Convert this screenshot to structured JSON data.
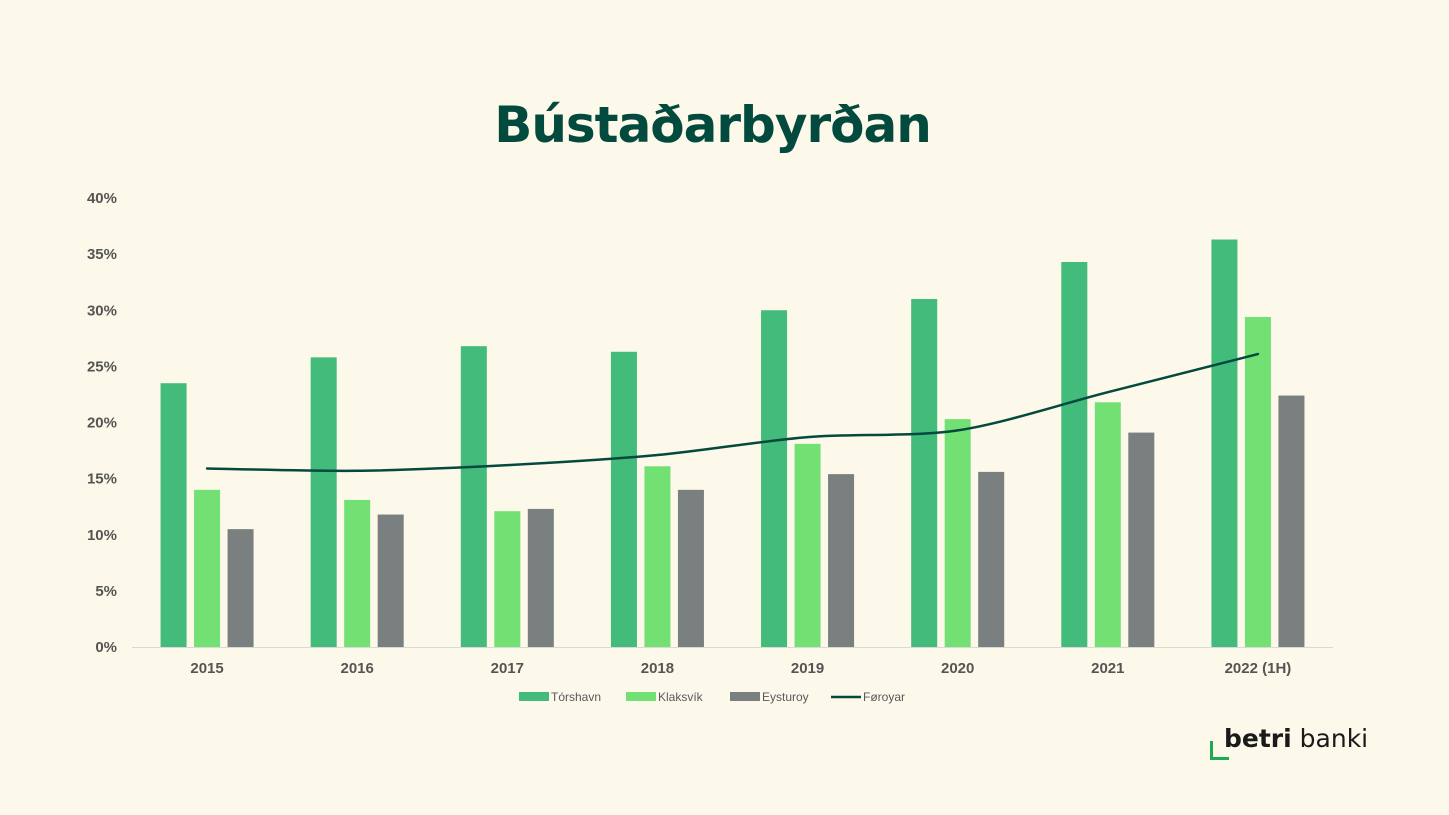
{
  "chart_data": {
    "type": "bar",
    "title": "Bústaðarbyrðan",
    "categories": [
      "2015",
      "2016",
      "2017",
      "2018",
      "2019",
      "2020",
      "2021",
      "2022 (1H)"
    ],
    "series": [
      {
        "name": "Tórshavn",
        "type": "bar",
        "color": "#43BB7B",
        "values": [
          23.5,
          25.8,
          26.8,
          26.3,
          30.0,
          31.0,
          34.3,
          36.3
        ]
      },
      {
        "name": "Klaksvík",
        "type": "bar",
        "color": "#73E074",
        "values": [
          14.0,
          13.1,
          12.1,
          16.1,
          18.1,
          20.3,
          21.8,
          29.4
        ]
      },
      {
        "name": "Eysturoy",
        "type": "bar",
        "color": "#7A7F7F",
        "values": [
          10.5,
          11.8,
          12.3,
          14.0,
          15.4,
          15.6,
          19.1,
          22.4
        ]
      },
      {
        "name": "Føroyar",
        "type": "line",
        "color": "#034A3E",
        "values": [
          15.9,
          15.7,
          16.2,
          17.1,
          18.7,
          19.3,
          22.7,
          26.1
        ]
      }
    ],
    "ylim": [
      0,
      40
    ],
    "yticks": [
      0,
      5,
      10,
      15,
      20,
      25,
      30,
      35,
      40
    ],
    "ytick_suffix": "%",
    "grid": false,
    "legend_position": "bottom"
  },
  "brand": {
    "bold": "betri",
    "light": "banki",
    "accent_color": "#1DAA52"
  }
}
